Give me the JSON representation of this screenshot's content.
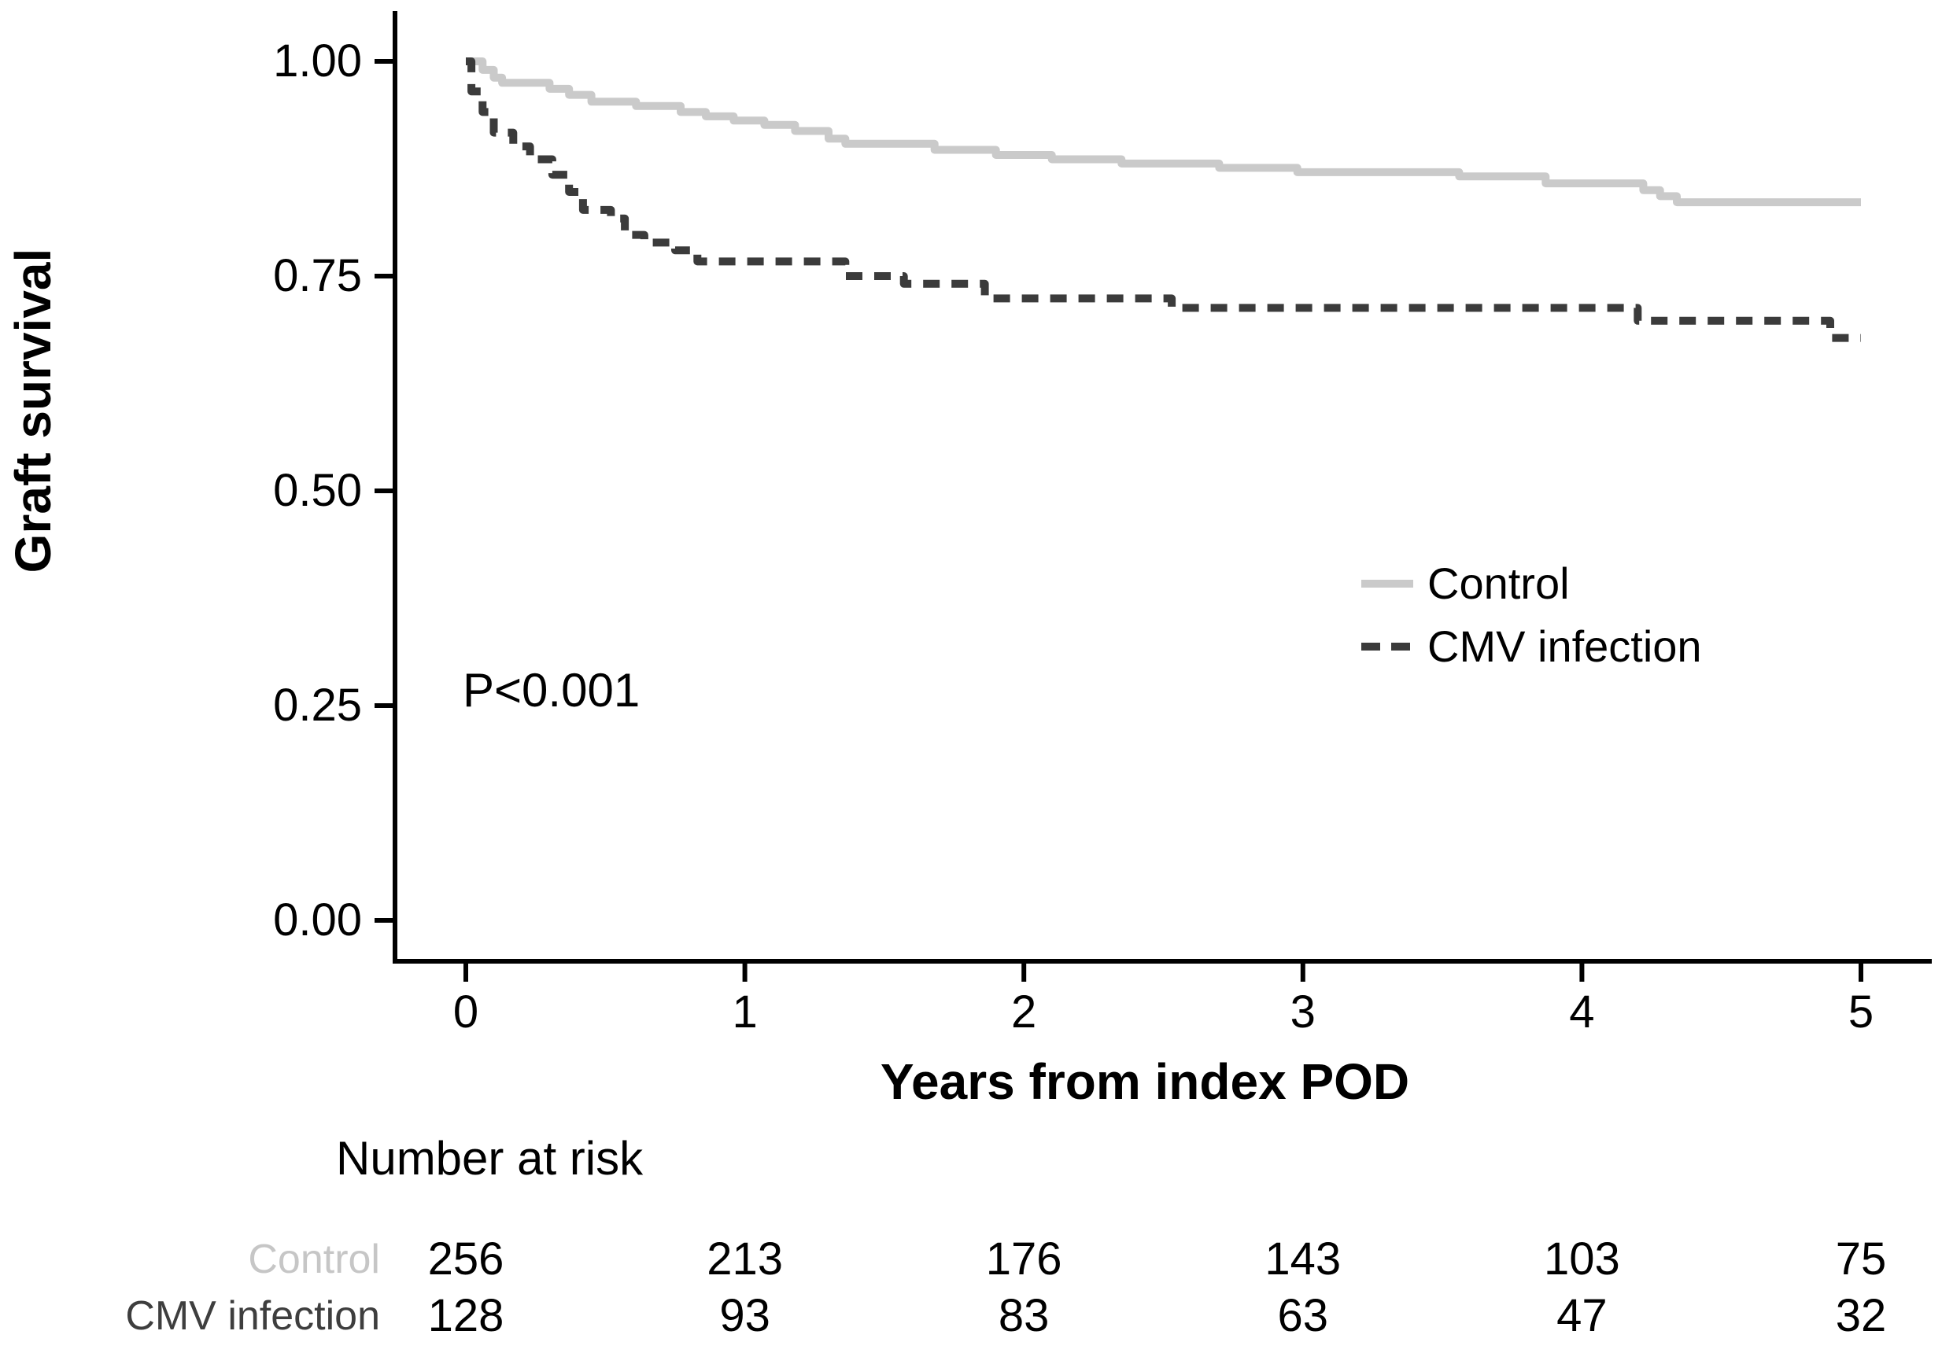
{
  "chart_data": {
    "type": "line",
    "subtype": "kaplan_meier_step_curves",
    "title": "",
    "xlabel": "Years from index POD",
    "ylabel": "Graft survival",
    "xlim": [
      0,
      5
    ],
    "ylim": [
      0.0,
      1.0
    ],
    "x_ticks": [
      "0",
      "1",
      "2",
      "3",
      "4",
      "5"
    ],
    "y_ticks": [
      "0.00",
      "0.25",
      "0.50",
      "0.75",
      "1.00"
    ],
    "grid": false,
    "legend_position": "right-middle-inside",
    "annotation": "P<0.001",
    "series": [
      {
        "name": "Control",
        "style": "solid",
        "color": "#cacaca",
        "points": [
          [
            0.0,
            1.0
          ],
          [
            0.06,
            0.99
          ],
          [
            0.1,
            0.981
          ],
          [
            0.13,
            0.975
          ],
          [
            0.3,
            0.968
          ],
          [
            0.37,
            0.961
          ],
          [
            0.45,
            0.953
          ],
          [
            0.61,
            0.948
          ],
          [
            0.77,
            0.941
          ],
          [
            0.86,
            0.936
          ],
          [
            0.96,
            0.931
          ],
          [
            1.07,
            0.926
          ],
          [
            1.18,
            0.919
          ],
          [
            1.3,
            0.91
          ],
          [
            1.36,
            0.904
          ],
          [
            1.68,
            0.897
          ],
          [
            1.9,
            0.891
          ],
          [
            2.1,
            0.886
          ],
          [
            2.35,
            0.881
          ],
          [
            2.7,
            0.876
          ],
          [
            2.98,
            0.871
          ],
          [
            3.56,
            0.866
          ],
          [
            3.87,
            0.858
          ],
          [
            4.22,
            0.85
          ],
          [
            4.28,
            0.843
          ],
          [
            4.34,
            0.836
          ],
          [
            5.0,
            0.836
          ]
        ]
      },
      {
        "name": "CMV infection",
        "style": "dashed",
        "color": "#3b3b3b",
        "points": [
          [
            0.0,
            1.0
          ],
          [
            0.02,
            0.965
          ],
          [
            0.06,
            0.941
          ],
          [
            0.1,
            0.917
          ],
          [
            0.17,
            0.901
          ],
          [
            0.23,
            0.886
          ],
          [
            0.31,
            0.868
          ],
          [
            0.37,
            0.848
          ],
          [
            0.42,
            0.827
          ],
          [
            0.52,
            0.817
          ],
          [
            0.57,
            0.798
          ],
          [
            0.64,
            0.789
          ],
          [
            0.75,
            0.78
          ],
          [
            0.83,
            0.767
          ],
          [
            1.36,
            0.75
          ],
          [
            1.57,
            0.741
          ],
          [
            1.86,
            0.724
          ],
          [
            2.53,
            0.713
          ],
          [
            4.2,
            0.698
          ],
          [
            4.89,
            0.678
          ],
          [
            5.0,
            0.678
          ]
        ]
      }
    ]
  },
  "annotation": {
    "p_value": "P<0.001"
  },
  "legend": {
    "items": [
      {
        "label": "Control"
      },
      {
        "label": "CMV infection"
      }
    ]
  },
  "risk_table": {
    "title": "Number at risk",
    "columns": [
      "0",
      "1",
      "2",
      "3",
      "4",
      "5"
    ],
    "rows": [
      {
        "label": "Control",
        "label_color": "#c6c6c6",
        "values": [
          "256",
          "213",
          "176",
          "143",
          "103",
          "75"
        ]
      },
      {
        "label": "CMV infection",
        "label_color": "#3e3e3e",
        "values": [
          "128",
          "93",
          "83",
          "63",
          "47",
          "32"
        ]
      }
    ]
  }
}
